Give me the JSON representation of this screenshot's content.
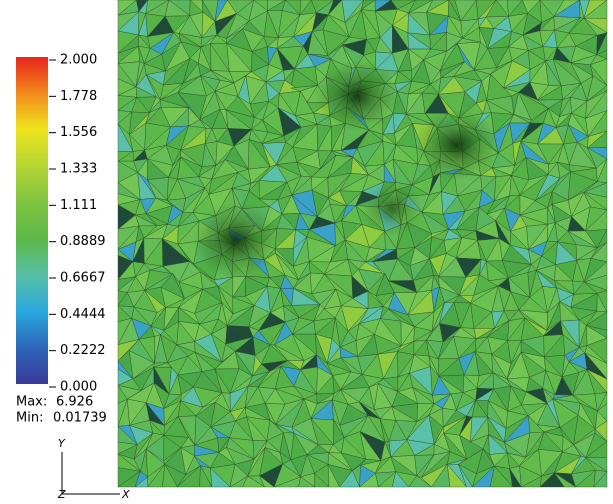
{
  "colorbar": {
    "ticks": [
      "2.000",
      "1.778",
      "1.556",
      "1.333",
      "1.111",
      "0.8889",
      "0.6667",
      "0.4444",
      "0.2222",
      "0.000"
    ]
  },
  "range": {
    "max_label": "Max:",
    "max_value": "6.926",
    "min_label": "Min:",
    "min_value": "0.01739"
  },
  "axes": {
    "y": "Y",
    "z": "Z",
    "x": "X"
  }
}
